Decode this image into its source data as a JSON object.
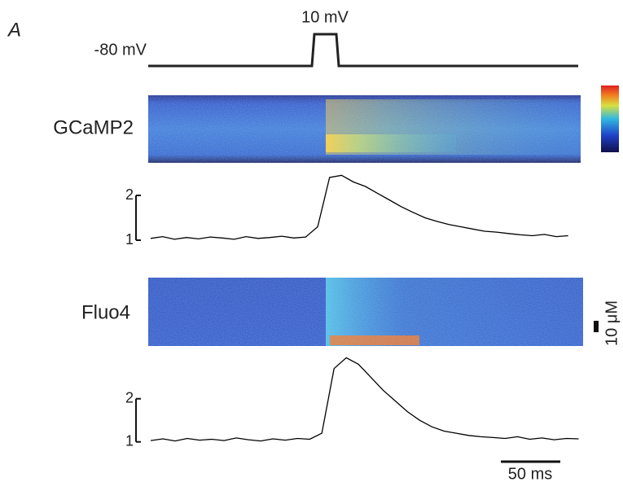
{
  "panel_label": "A",
  "voltage_protocol": {
    "holding_label": "-80 mV",
    "step_label": "10 mV"
  },
  "concentration_scale_bar": "10 μM",
  "time_scale_bar": "50 ms",
  "chart_data": [
    {
      "type": "line",
      "label": "GCaMP2",
      "color": "#000000",
      "x": [
        0,
        10,
        20,
        30,
        40,
        50,
        60,
        70,
        80,
        90,
        100,
        110,
        120,
        130,
        140,
        150,
        160,
        170,
        180,
        190,
        200,
        210,
        220,
        230,
        240,
        250,
        260,
        270,
        280,
        290,
        300,
        310,
        320,
        330,
        340,
        350
      ],
      "values": [
        1.04,
        1.08,
        1.02,
        1.06,
        1.03,
        1.07,
        1.05,
        1.02,
        1.08,
        1.04,
        1.06,
        1.09,
        1.05,
        1.07,
        1.3,
        2.4,
        2.45,
        2.3,
        2.2,
        2.05,
        1.9,
        1.75,
        1.62,
        1.5,
        1.42,
        1.35,
        1.3,
        1.25,
        1.2,
        1.18,
        1.15,
        1.12,
        1.1,
        1.13,
        1.08,
        1.1
      ],
      "xlim": [
        0,
        355
      ],
      "ylim": [
        0.9,
        2.6
      ],
      "yticks": [
        1,
        2
      ]
    },
    {
      "type": "line",
      "label": "Fluo4",
      "color": "#000000",
      "x": [
        0,
        10,
        20,
        30,
        40,
        50,
        60,
        70,
        80,
        90,
        100,
        110,
        120,
        130,
        140,
        150,
        160,
        170,
        180,
        190,
        200,
        210,
        220,
        230,
        240,
        250,
        260,
        270,
        280,
        290,
        300,
        310,
        320,
        330,
        340,
        350
      ],
      "values": [
        1.03,
        1.07,
        1.02,
        1.08,
        1.04,
        1.06,
        1.03,
        1.09,
        1.05,
        1.02,
        1.07,
        1.04,
        1.08,
        1.06,
        1.2,
        2.7,
        2.95,
        2.8,
        2.5,
        2.2,
        1.95,
        1.7,
        1.5,
        1.35,
        1.25,
        1.2,
        1.15,
        1.12,
        1.1,
        1.08,
        1.12,
        1.06,
        1.09,
        1.05,
        1.08,
        1.07
      ],
      "xlim": [
        0,
        355
      ],
      "ylim": [
        0.9,
        3.1
      ],
      "yticks": [
        1,
        2
      ]
    }
  ]
}
